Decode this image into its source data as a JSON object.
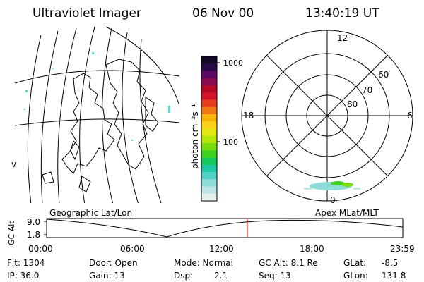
{
  "header": {
    "title": "Ultraviolet Imager",
    "date": "06 Nov 00",
    "time": "13:40:19 UT"
  },
  "colorbar": {
    "unit_label": "photon cm⁻²s⁻¹",
    "ticks": [
      "1000",
      "100"
    ],
    "colors": [
      "#140a28",
      "#2a0a46",
      "#5a0a64",
      "#8a0a50",
      "#b40a28",
      "#d2142a",
      "#e63c1e",
      "#f07814",
      "#f8b40a",
      "#fad21e",
      "#e6e614",
      "#b4e60a",
      "#78dc0a",
      "#3cd21e",
      "#14c85a",
      "#1ec8a0",
      "#50d2c8",
      "#8cdcd8",
      "#bee6e6",
      "#e6f0f0"
    ]
  },
  "map_left": {
    "label": "Geographic Lat/Lon",
    "corner_mark": "v"
  },
  "map_right": {
    "label": "Apex MLat/MLT",
    "mlt_labels": {
      "top": "12",
      "left": "18",
      "right": "6",
      "bottom": "0"
    },
    "lat_labels": [
      "60",
      "70",
      "80"
    ]
  },
  "altitude_plot": {
    "ylabel": "GC Alt",
    "yticks": [
      "9.0",
      "1.8"
    ],
    "xticks": [
      "00:00",
      "06:00",
      "12:00",
      "18:00",
      "23:59"
    ],
    "current_time_marker_color": "#ff0000"
  },
  "info": {
    "flt": "Flt: 1304",
    "ip": "IP: 36.0",
    "door": "Door: Open",
    "gain": "Gain: 13",
    "mode": "Mode: Normal",
    "dsp_label": "Dsp:",
    "dsp_value": "2.1",
    "gcalt": "GC Alt: 8.1 Re",
    "seq": "Seq: 13",
    "glat_label": "GLat:",
    "glat_value": "-8.5",
    "glon_label": "GLon:",
    "glon_value": "131.8"
  }
}
